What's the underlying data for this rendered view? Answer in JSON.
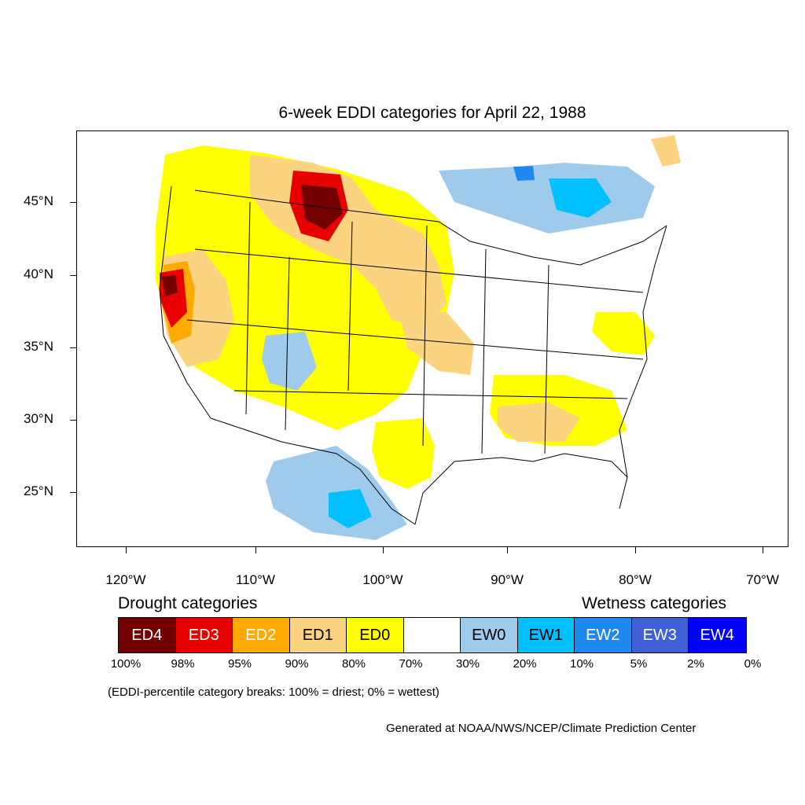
{
  "map": {
    "title": "6-week EDDI categories for April 22, 1988",
    "latitude_labels": [
      "45°N",
      "40°N",
      "35°N",
      "30°N",
      "25°N"
    ],
    "longitude_labels": [
      "120°W",
      "110°W",
      "100°W",
      "90°W",
      "80°W",
      "70°W"
    ]
  },
  "legend": {
    "drought_heading": "Drought categories",
    "wetness_heading": "Wetness categories",
    "categories": [
      {
        "label": "ED4",
        "color": "#730000",
        "text_color": "#ffffff"
      },
      {
        "label": "ED3",
        "color": "#e60000",
        "text_color": "#ffffff"
      },
      {
        "label": "ED2",
        "color": "#ffaa00",
        "text_color": "#ffffff"
      },
      {
        "label": "ED1",
        "color": "#fcd37f",
        "text_color": "#000000"
      },
      {
        "label": "ED0",
        "color": "#ffff00",
        "text_color": "#000000"
      },
      {
        "label": "",
        "color": "#ffffff",
        "text_color": "#000000"
      },
      {
        "label": "EW0",
        "color": "#9ecbeb",
        "text_color": "#000000"
      },
      {
        "label": "EW1",
        "color": "#00c0ff",
        "text_color": "#000000"
      },
      {
        "label": "EW2",
        "color": "#1e88f0",
        "text_color": "#ffffff"
      },
      {
        "label": "EW3",
        "color": "#4060d8",
        "text_color": "#ffffff"
      },
      {
        "label": "EW4",
        "color": "#0000ff",
        "text_color": "#ffffff"
      }
    ],
    "percentile_breaks": [
      "100%",
      "98%",
      "95%",
      "90%",
      "80%",
      "70%",
      "30%",
      "20%",
      "10%",
      "5%",
      "2%",
      "0%"
    ]
  },
  "note": "(EDDI-percentile category breaks: 100% = driest; 0% = wettest)",
  "credit": "Generated at NOAA/NWS/NCEP/Climate Prediction Center"
}
